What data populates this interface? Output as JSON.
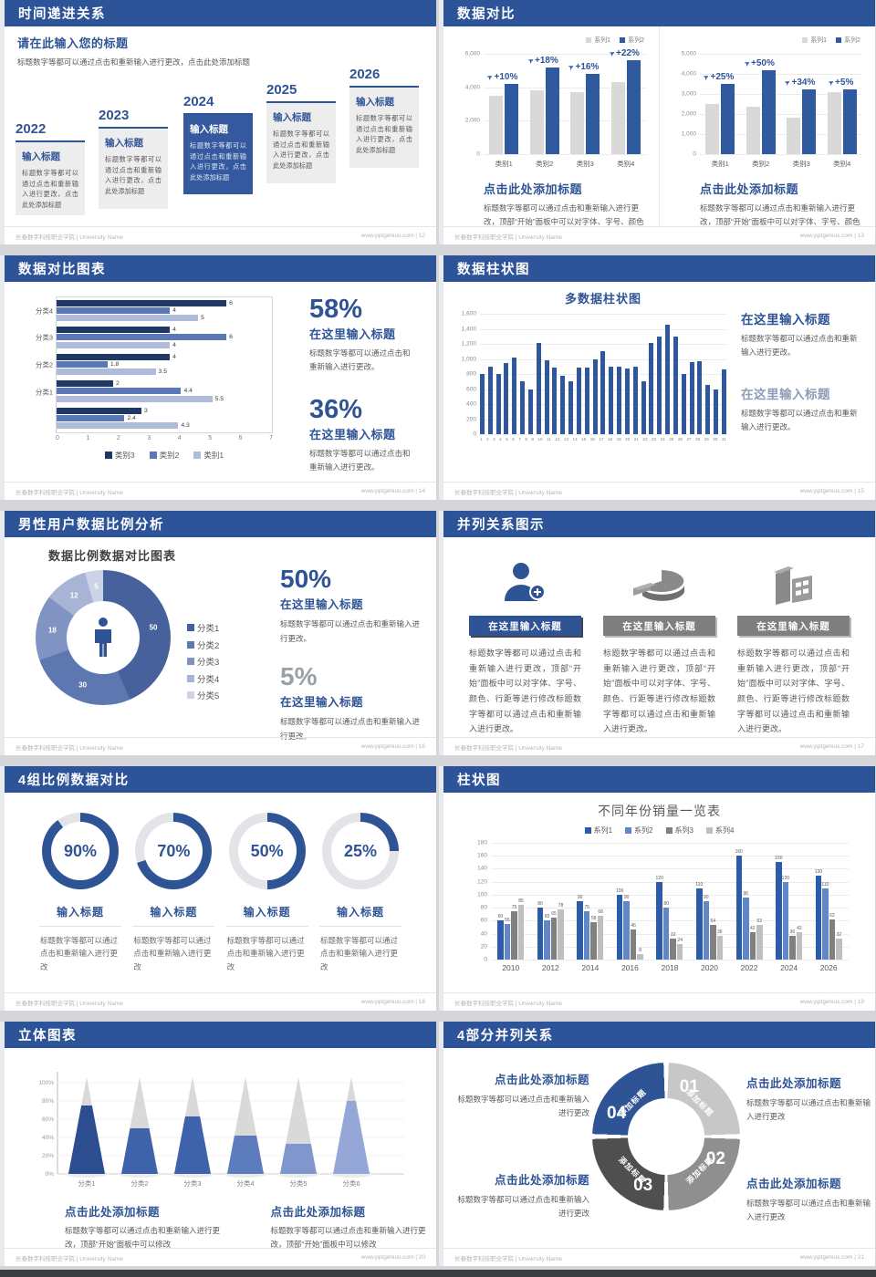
{
  "accent": "#2f5496",
  "header_blue": "#2d5399",
  "footer": {
    "org": "长春数字科技职业学院 | University Name",
    "site": "www.pptgenius.com",
    "sep": " | "
  },
  "slide12": {
    "page": "12",
    "title": "时间递进关系",
    "intro_title": "请在此输入您的标题",
    "intro_body": "标题数字等都可以通过点击和重新输入进行更改，点击此处添加标题",
    "steps": [
      {
        "year": "2022",
        "title": "输入标题",
        "body": "标题数字等都可以通过点击和重新输入进行更改，点击此处添加标题",
        "highlight": false
      },
      {
        "year": "2023",
        "title": "输入标题",
        "body": "标题数字等都可以通过点击和重新输入进行更改，点击此处添加标题",
        "highlight": false
      },
      {
        "year": "2024",
        "title": "输入标题",
        "body": "标题数字等都可以通过点击和重新输入进行更改，点击此处添加标题",
        "highlight": true
      },
      {
        "year": "2025",
        "title": "输入标题",
        "body": "标题数字等都可以通过点击和重新输入进行更改，点击此处添加标题",
        "highlight": false
      },
      {
        "year": "2026",
        "title": "输入标题",
        "body": "标题数字等都可以通过点击和重新输入进行更改，点击此处添加标题",
        "highlight": false
      }
    ]
  },
  "slide13": {
    "page": "13",
    "title": "数据对比",
    "block_title": "点击此处添加标题",
    "block_body": "标题数字等都可以通过点击和重新输入进行更改，顶部“开始”面板中可以对字体、字号、颜色",
    "legend": [
      {
        "name": "系列1",
        "color": "#d9d9d9"
      },
      {
        "name": "系列2",
        "color": "#2f5aa0"
      }
    ],
    "charts": [
      {
        "type": "bar",
        "categories": [
          "类别1",
          "类别2",
          "类别3",
          "类别4"
        ],
        "ymax": 6000,
        "yticks": [
          "6,000",
          "4,000",
          "2,000",
          "0"
        ],
        "series": [
          {
            "name": "系列1",
            "color": "#d9d9d9",
            "values": [
              3500,
              3800,
              3700,
              4300
            ]
          },
          {
            "name": "系列2",
            "color": "#2f5aa0",
            "values": [
              4200,
              5200,
              4800,
              5600
            ]
          }
        ],
        "growth_labels": [
          "+10%",
          "+18%",
          "+16%",
          "+22%"
        ]
      },
      {
        "type": "bar",
        "categories": [
          "类别1",
          "类别2",
          "类别3",
          "类别4"
        ],
        "ymax": 5000,
        "yticks": [
          "5,000",
          "4,000",
          "3,000",
          "2,000",
          "1,000",
          "0"
        ],
        "series": [
          {
            "name": "系列1",
            "color": "#d9d9d9",
            "values": [
              2500,
              2350,
              1800,
              3100
            ]
          },
          {
            "name": "系列2",
            "color": "#2f5aa0",
            "values": [
              3500,
              4200,
              3250,
              3250
            ]
          }
        ],
        "growth_labels": [
          "+25%",
          "+50%",
          "+34%",
          "+5%"
        ]
      }
    ]
  },
  "slide14": {
    "page": "14",
    "title": "数据对比图表",
    "chart": {
      "type": "bar-horizontal",
      "xmax": 7,
      "groups": [
        "分类4",
        "分类3",
        "分类2",
        "分类1",
        ""
      ],
      "xticks": [
        "0",
        "1",
        "2",
        "3",
        "4",
        "5",
        "6",
        "7"
      ],
      "series": [
        {
          "name": "类别3",
          "color": "#203864",
          "values": [
            6,
            4,
            4,
            2,
            3
          ]
        },
        {
          "name": "类别2",
          "color": "#5a78b8",
          "values": [
            4,
            6,
            1.8,
            4.4,
            2.4
          ]
        },
        {
          "name": "类别1",
          "color": "#aebcd9",
          "values": [
            5,
            4,
            3.5,
            5.5,
            4.3
          ]
        }
      ]
    },
    "stats": [
      {
        "pct": "58%",
        "title": "在这里输入标题",
        "body": "标题数字等都可以通过点击和重新输入进行更改。"
      },
      {
        "pct": "36%",
        "title": "在这里输入标题",
        "body": "标题数字等都可以通过点击和重新输入进行更改。"
      }
    ]
  },
  "slide15": {
    "page": "15",
    "title": "数据柱状图",
    "chart": {
      "type": "bar",
      "title": "多数据柱状图",
      "color": "#2e579e",
      "ymax": 1600,
      "yticks": [
        "1,600",
        "1,400",
        "1,200",
        "1,000",
        "800",
        "600",
        "400",
        "200",
        "0"
      ],
      "categories": [
        "1",
        "2",
        "3",
        "4",
        "5",
        "6",
        "7",
        "8",
        "9",
        "10",
        "11",
        "12",
        "13",
        "14",
        "15",
        "16",
        "17",
        "18",
        "19",
        "20",
        "21",
        "22",
        "23",
        "24",
        "25",
        "26",
        "27",
        "28",
        "29",
        "30",
        "31"
      ],
      "values": [
        800,
        900,
        800,
        950,
        1020,
        700,
        600,
        1210,
        980,
        890,
        780,
        700,
        890,
        890,
        990,
        1100,
        900,
        900,
        870,
        900,
        700,
        1210,
        1300,
        1450,
        1300,
        800,
        960,
        970,
        660,
        600,
        860
      ]
    },
    "blocks": [
      {
        "title": "在这里输入标题",
        "body": "标题数字等都可以通过点击和重新输入进行更改。"
      },
      {
        "title": "在这里输入标题",
        "body": "标题数字等都可以通过点击和重新输入进行更改。"
      }
    ]
  },
  "slide16": {
    "page": "16",
    "title": "男性用户数据比例分析",
    "chart": {
      "type": "pie",
      "title": "数据比例数据对比图表",
      "values": [
        50,
        30,
        18,
        12,
        5
      ],
      "labels": [
        "50",
        "30",
        "18",
        "12",
        "5"
      ],
      "legend": [
        "分类1",
        "分类2",
        "分类3",
        "分类4",
        "分类5"
      ],
      "colors": [
        "#46619c",
        "#5d77b0",
        "#8193c3",
        "#a7b4d6",
        "#ccd3e8"
      ],
      "center_icon": "male-person-icon"
    },
    "stats": [
      {
        "pct": "50%",
        "title": "在这里输入标题",
        "body": "标题数字等都可以通过点击和重新输入进行更改。",
        "muted": false
      },
      {
        "pct": "5%",
        "title": "在这里输入标题",
        "body": "标题数字等都可以通过点击和重新输入进行更改。",
        "muted": true
      }
    ]
  },
  "slide17": {
    "page": "17",
    "title": "并列关系图示",
    "items": [
      {
        "icon": "person-plus-icon",
        "style": "blue",
        "title": "在这里输入标题",
        "body": "标题数字等都可以通过点击和重新输入进行更改，顶部“开始”面板中可以对字体、字号、颜色、行距等进行修改标题数字等都可以通过点击和重新输入进行更改。"
      },
      {
        "icon": "pie-3d-icon",
        "style": "gray",
        "title": "在这里输入标题",
        "body": "标题数字等都可以通过点击和重新输入进行更改，顶部“开始”面板中可以对字体、字号、颜色、行距等进行修改标题数字等都可以通过点击和重新输入进行更改。"
      },
      {
        "icon": "building-icon",
        "style": "gray",
        "title": "在这里输入标题",
        "body": "标题数字等都可以通过点击和重新输入进行更改，顶部“开始”面板中可以对字体、字号、颜色、行距等进行修改标题数字等都可以通过点击和重新输入进行更改。"
      }
    ]
  },
  "slide18": {
    "page": "18",
    "title": "4组比例数据对比",
    "gauges": [
      {
        "pct": 90,
        "label": "90%",
        "title": "输入标题",
        "body": "标题数字等都可以通过点击和重新输入进行更改"
      },
      {
        "pct": 70,
        "label": "70%",
        "title": "输入标题",
        "body": "标题数字等都可以通过点击和重新输入进行更改"
      },
      {
        "pct": 50,
        "label": "50%",
        "title": "输入标题",
        "body": "标题数字等都可以通过点击和重新输入进行更改"
      },
      {
        "pct": 25,
        "label": "25%",
        "title": "输入标题",
        "body": "标题数字等都可以通过点击和重新输入进行更改"
      }
    ]
  },
  "slide19": {
    "page": "19",
    "title": "柱状图",
    "chart": {
      "type": "bar",
      "title": "不同年份销量一览表",
      "ymax": 180,
      "yticks": [
        "180",
        "160",
        "140",
        "120",
        "100",
        "80",
        "60",
        "40",
        "20",
        "0"
      ],
      "categories": [
        "2010",
        "2012",
        "2014",
        "2016",
        "2018",
        "2020",
        "2022",
        "2024",
        "2026"
      ],
      "series": [
        {
          "name": "系列1",
          "color": "#2a5caa",
          "values": [
            60,
            80,
            90,
            100,
            120,
            110,
            160,
            150,
            130
          ]
        },
        {
          "name": "系列2",
          "color": "#6287c8",
          "values": [
            55,
            60,
            75,
            90,
            80,
            90,
            96,
            120,
            110
          ]
        },
        {
          "name": "系列3",
          "color": "#808080",
          "values": [
            75,
            65,
            58,
            46,
            32,
            54,
            42,
            36,
            62
          ]
        },
        {
          "name": "系列4",
          "color": "#bfbfbf",
          "values": [
            85,
            78,
            68,
            8,
            24,
            36,
            53,
            42,
            32
          ]
        }
      ]
    }
  },
  "slide20": {
    "page": "20",
    "title": "立体图表",
    "chart": {
      "type": "cone",
      "categories": [
        "分类1",
        "分类2",
        "分类3",
        "分类4",
        "分类5",
        "分类6"
      ],
      "values": [
        75,
        50,
        63,
        42,
        33,
        80
      ],
      "colors": [
        "#2c4e91",
        "#3e63ab",
        "#3e63ab",
        "#5d7cbd",
        "#7f97cd",
        "#94a7d7"
      ],
      "yticks": [
        "100%",
        "80%",
        "60%",
        "40%",
        "20%",
        "0%"
      ]
    },
    "blocks": [
      {
        "title": "点击此处添加标题",
        "body": "标题数字等都可以通过点击和重新输入进行更改，顶部“开始”面板中可以修改"
      },
      {
        "title": "点击此处添加标题",
        "body": "标题数字等都可以通过点击和重新输入进行更改，顶部“开始”面板中可以修改"
      }
    ]
  },
  "slide21": {
    "page": "21",
    "title": "4部分并列关系",
    "ring": {
      "segment_label": "添加标题",
      "numbers": [
        "01",
        "02",
        "03",
        "04"
      ],
      "colors": [
        "#c7c7c7",
        "#8f8f8f",
        "#4f4f4f",
        "#2f5496"
      ]
    },
    "blocks": [
      {
        "pos": "tl",
        "title": "点击此处添加标题",
        "body": "标题数字等都可以通过点击和重新输入进行更改"
      },
      {
        "pos": "tr",
        "title": "点击此处添加标题",
        "body": "标题数字等都可以通过点击和重新输入进行更改"
      },
      {
        "pos": "bl",
        "title": "点击此处添加标题",
        "body": "标题数字等都可以通过点击和重新输入进行更改"
      },
      {
        "pos": "br",
        "title": "点击此处添加标题",
        "body": "标题数字等都可以通过点击和重新输入进行更改"
      }
    ]
  }
}
